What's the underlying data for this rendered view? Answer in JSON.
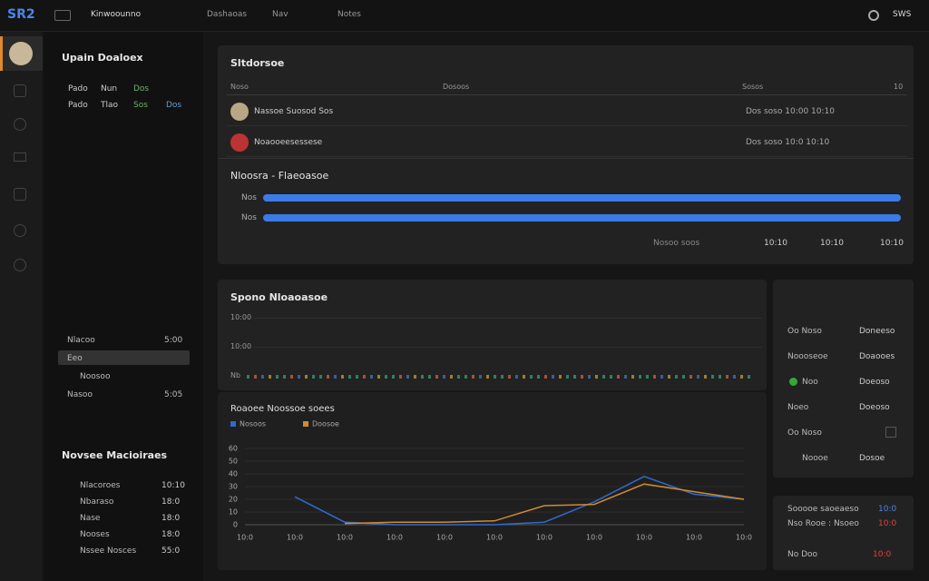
{
  "header": {
    "logo": "SR2",
    "app": "Kinwoounno",
    "nav": [
      "Dashaoas",
      "Nav",
      "Notes"
    ],
    "user": "SWS"
  },
  "left": {
    "title": "Upain Doaloex",
    "rows": [
      [
        "Pado",
        "Nun",
        "Dos"
      ],
      [
        "Pado",
        "Tlao",
        "Sos",
        "Dos"
      ]
    ],
    "items": [
      {
        "label": "Nlacoo",
        "value": "5:00"
      },
      {
        "label": "Eeo",
        "value": ""
      },
      {
        "label": "Noosoo",
        "value": ""
      },
      {
        "label": "Nasoo",
        "value": "5:05"
      }
    ],
    "list_title": "Novsee Macioiraes",
    "list": [
      {
        "label": "Nlacoroes",
        "value": "10:10"
      },
      {
        "label": "Nbaraso",
        "value": "18:0"
      },
      {
        "label": "Nase",
        "value": "18:0"
      },
      {
        "label": "Nooses",
        "value": "18:0"
      },
      {
        "label": "Nssee Nosces",
        "value": "55:0"
      }
    ]
  },
  "table": {
    "title": "Sltdorsoe",
    "columns": [
      "Noso",
      "Dosoos",
      "Sosos",
      "10"
    ],
    "rows": [
      [
        "Nassoe Suosod Sos",
        "Dos soso 10:00 10:10"
      ],
      [
        "Noaooeesessese",
        "Dos soso 10:0 10:10"
      ]
    ]
  },
  "progress": {
    "title": "Nloosra - Flaeoasoe",
    "bars": [
      "Nos",
      "Nos"
    ],
    "footer": [
      "Nosoo soos",
      "10:10",
      "10:10",
      "10:10"
    ]
  },
  "activity": {
    "title": "Spono Nloaoasoe",
    "labels": [
      "10:00",
      "10:00",
      "Nb"
    ]
  },
  "stats": [
    [
      "Oo Noso",
      "Doneeso"
    ],
    [
      "Noooseoe",
      "Doaooes"
    ],
    [
      "Noo",
      "Doeoso"
    ],
    [
      "Noeo",
      "Doeoso"
    ],
    [
      "Oo Noso",
      ""
    ],
    [
      "Noooe",
      "Dosoe"
    ]
  ],
  "alerts": [
    "Sooooe saoeaeso",
    "10:0",
    "Nso Rooe : Nsoeo",
    "10:0",
    "No Doo",
    "10:0"
  ],
  "chart_data": {
    "type": "line",
    "title": "Roaoee Noossoe soees",
    "categories": [
      "10:0",
      "10:0",
      "10:0",
      "10:0",
      "10:0",
      "10:0",
      "10:0",
      "10:0",
      "10:0",
      "10:0",
      "10:0"
    ],
    "series": [
      {
        "name": "Nosoos",
        "color": "#2f6ad0",
        "values": [
          null,
          22,
          2,
          0,
          0,
          0,
          2,
          18,
          38,
          24,
          20
        ]
      },
      {
        "name": "Doosoe",
        "color": "#d08a30",
        "values": [
          null,
          null,
          1,
          2,
          2,
          3,
          15,
          16,
          32,
          26,
          20
        ]
      }
    ],
    "ylim": [
      0,
      60
    ],
    "yticks": [
      0,
      10,
      20,
      30,
      40,
      50,
      60
    ],
    "grid": true
  }
}
